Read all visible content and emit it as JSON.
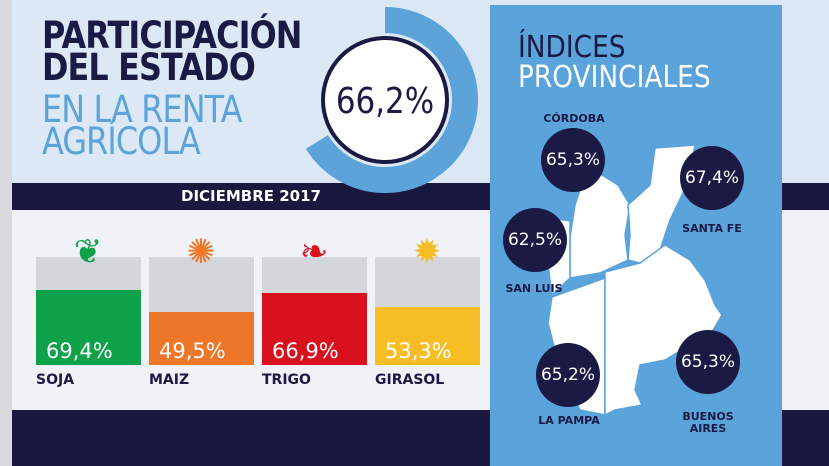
{
  "header": {
    "title_lines": [
      "PARTICIPACIÓN",
      "DEL ESTADO",
      "EN LA RENTA",
      "AGRÍCOLA"
    ],
    "total": "66,2%",
    "total_value": 66.2,
    "date": "DICIEMBRE 2017"
  },
  "colors": {
    "navy": "#1b1a45",
    "light_blue": "#5ba3d9",
    "soja": "#0fa04a",
    "maiz": "#ee7628",
    "trigo": "#d9111f",
    "girasol": "#f7bd25"
  },
  "chart_data": {
    "type": "bar",
    "categories": [
      "SOJA",
      "MAIZ",
      "TRIGO",
      "GIRASOL"
    ],
    "values": [
      69.4,
      49.5,
      66.9,
      53.3
    ],
    "labels": [
      "69,4%",
      "49,5%",
      "66,9%",
      "53,3%"
    ],
    "icons": [
      "soybean-pod-icon",
      "corn-icon",
      "wheat-icon",
      "sunflower-icon"
    ],
    "ylim": [
      0,
      100
    ]
  },
  "provinces": {
    "title_lines": [
      "ÍNDICES",
      "PROVINCIALES"
    ],
    "items": [
      {
        "name": "CÓRDOBA",
        "value": "65,3%"
      },
      {
        "name": "SANTA FE",
        "value": "67,4%"
      },
      {
        "name": "SAN LUIS",
        "value": "62,5%"
      },
      {
        "name": "LA PAMPA",
        "value": "65,2%"
      },
      {
        "name": "BUENOS AIRES",
        "value": "65,3%"
      }
    ]
  }
}
